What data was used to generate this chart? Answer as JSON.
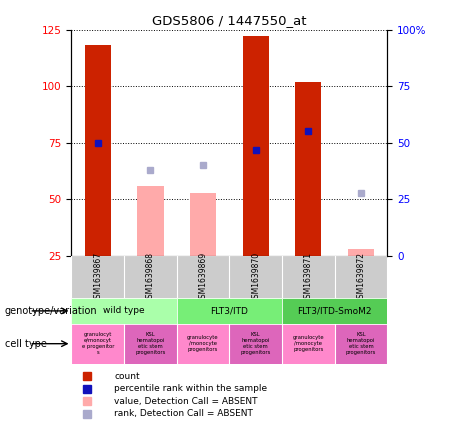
{
  "title": "GDS5806 / 1447550_at",
  "samples": [
    "GSM1639867",
    "GSM1639868",
    "GSM1639869",
    "GSM1639870",
    "GSM1639871",
    "GSM1639872"
  ],
  "count_values": [
    118,
    null,
    null,
    122,
    102,
    null
  ],
  "count_absent_values": [
    null,
    56,
    53,
    null,
    null,
    28
  ],
  "rank_values_pct": [
    50,
    null,
    null,
    47,
    55,
    null
  ],
  "rank_absent_values_pct": [
    null,
    38,
    40,
    null,
    null,
    28
  ],
  "left_ylim": [
    25,
    125
  ],
  "left_yticks": [
    25,
    50,
    75,
    100,
    125
  ],
  "right_ylim": [
    0,
    100
  ],
  "right_yticks": [
    0,
    25,
    50,
    75,
    100
  ],
  "right_tick_labels": [
    "0",
    "25",
    "50",
    "75",
    "100%"
  ],
  "count_color": "#cc2200",
  "count_absent_color": "#ffaaaa",
  "rank_color": "#1111bb",
  "rank_absent_color": "#aaaacc",
  "genotype_groups": [
    {
      "label": "wild type",
      "cols": [
        0,
        1
      ],
      "color": "#aaffaa"
    },
    {
      "label": "FLT3/ITD",
      "cols": [
        2,
        3
      ],
      "color": "#77ee77"
    },
    {
      "label": "FLT3/ITD-SmoM2",
      "cols": [
        4,
        5
      ],
      "color": "#55cc55"
    }
  ],
  "cell_type_labels": [
    "granulocyt\ne/monocyt\ne progenitor\ns",
    "KSL\nhematopoi\netic stem\nprogenitors",
    "granulocyte\n/monocyte\nprogenitors",
    "KSL\nhematopoi\netic stem\nprogenitors",
    "granulocyte\n/monocyte\nprogenitors",
    "KSL\nhematopoi\netic stem\nprogenitors"
  ],
  "cell_colors": [
    "#ff88cc",
    "#dd66bb",
    "#ff88cc",
    "#dd66bb",
    "#ff88cc",
    "#dd66bb"
  ],
  "legend_items": [
    {
      "label": "count",
      "color": "#cc2200"
    },
    {
      "label": "percentile rank within the sample",
      "color": "#1111bb"
    },
    {
      "label": "value, Detection Call = ABSENT",
      "color": "#ffaaaa"
    },
    {
      "label": "rank, Detection Call = ABSENT",
      "color": "#aaaacc"
    }
  ],
  "sample_box_color": "#cccccc",
  "bar_width": 0.5
}
